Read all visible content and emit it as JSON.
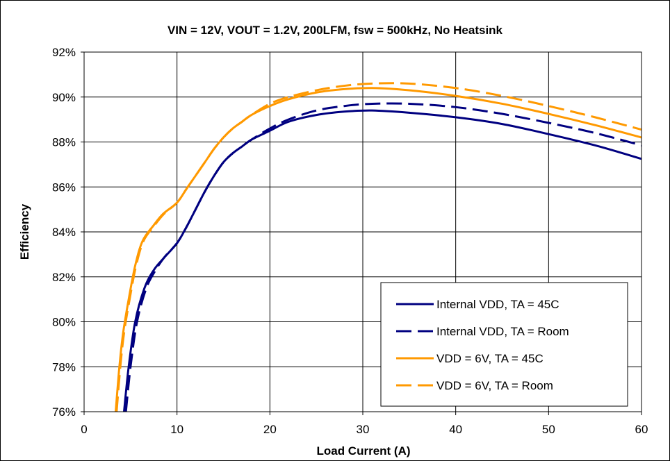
{
  "chart_data": {
    "type": "line",
    "title": "VIN = 12V, VOUT = 1.2V, 200LFM, fsw = 500kHz, No Heatsink",
    "xlabel": "Load Current (A)",
    "ylabel": "Efficiency",
    "xlim": [
      0,
      60
    ],
    "ylim": [
      76,
      92
    ],
    "xticks": [
      0,
      10,
      20,
      30,
      40,
      50,
      60
    ],
    "yticks": [
      76,
      78,
      80,
      82,
      84,
      86,
      88,
      90,
      92
    ],
    "ytick_suffix": "%",
    "grid": true,
    "legend_position": "bottom-right",
    "series": [
      {
        "name": "Internal VDD, TA = 45C",
        "color": "#000080",
        "dash": "solid",
        "x": [
          4.3,
          4.8,
          5.5,
          6.5,
          7.5,
          8.5,
          10,
          11,
          12,
          13,
          14,
          15,
          16,
          17,
          18,
          20,
          22,
          25,
          28,
          31,
          35,
          40,
          45,
          50,
          55,
          60
        ],
        "y": [
          76.0,
          78.0,
          80.0,
          81.5,
          82.3,
          82.8,
          83.5,
          84.2,
          85.0,
          85.8,
          86.5,
          87.1,
          87.5,
          87.8,
          88.1,
          88.5,
          88.9,
          89.2,
          89.35,
          89.4,
          89.3,
          89.1,
          88.8,
          88.35,
          87.85,
          87.25
        ]
      },
      {
        "name": "Internal VDD, TA = Room",
        "color": "#000080",
        "dash": "dashed",
        "x": [
          4.5,
          5.0,
          5.7,
          6.7,
          7.7,
          8.7,
          10,
          11,
          12,
          13,
          14,
          15,
          16,
          17,
          18,
          20,
          22,
          25,
          28,
          31,
          35,
          40,
          45,
          50,
          55,
          60
        ],
        "y": [
          76.0,
          78.0,
          80.0,
          81.5,
          82.3,
          82.9,
          83.5,
          84.2,
          85.0,
          85.8,
          86.5,
          87.1,
          87.5,
          87.8,
          88.1,
          88.6,
          89.0,
          89.4,
          89.6,
          89.7,
          89.7,
          89.55,
          89.25,
          88.85,
          88.4,
          87.85
        ]
      },
      {
        "name": "VDD = 6V, TA = 45C",
        "color": "#FF9900",
        "dash": "solid",
        "x": [
          3.4,
          3.8,
          4.2,
          4.8,
          5.5,
          6.3,
          7.5,
          8.5,
          10,
          11,
          12,
          13,
          14,
          15,
          16,
          17,
          18,
          20,
          22,
          25,
          28,
          31,
          35,
          40,
          45,
          50,
          55,
          60
        ],
        "y": [
          76.0,
          78.0,
          79.5,
          81.0,
          82.5,
          83.6,
          84.3,
          84.8,
          85.3,
          85.9,
          86.5,
          87.1,
          87.7,
          88.2,
          88.6,
          88.9,
          89.2,
          89.6,
          89.9,
          90.2,
          90.35,
          90.4,
          90.3,
          90.05,
          89.7,
          89.25,
          88.75,
          88.2
        ]
      },
      {
        "name": "VDD = 6V, TA = Room",
        "color": "#FF9900",
        "dash": "dashed",
        "x": [
          3.5,
          3.9,
          4.3,
          4.9,
          5.6,
          6.4,
          7.6,
          8.6,
          10,
          11,
          12,
          13,
          14,
          15,
          16,
          17,
          18,
          20,
          22,
          25,
          28,
          31,
          35,
          40,
          45,
          50,
          55,
          60
        ],
        "y": [
          76.0,
          78.0,
          79.5,
          81.0,
          82.5,
          83.6,
          84.3,
          84.8,
          85.3,
          85.9,
          86.5,
          87.1,
          87.7,
          88.2,
          88.6,
          88.9,
          89.2,
          89.7,
          90.0,
          90.3,
          90.5,
          90.6,
          90.6,
          90.4,
          90.05,
          89.6,
          89.1,
          88.55
        ]
      }
    ]
  }
}
